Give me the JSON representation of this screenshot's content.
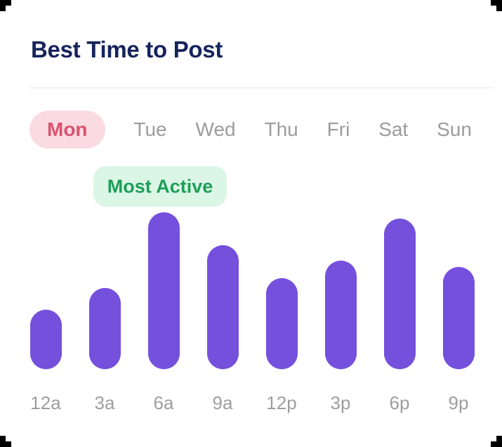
{
  "page": {
    "title": "Best Time to Post"
  },
  "tabs": {
    "days": [
      "Mon",
      "Tue",
      "Wed",
      "Thu",
      "Fri",
      "Sat",
      "Sun"
    ],
    "selected": "Mon"
  },
  "badge": {
    "label": "Most Active"
  },
  "chart_data": {
    "type": "bar",
    "categories": [
      "12a",
      "3a",
      "6a",
      "9a",
      "12p",
      "3p",
      "6p",
      "9p"
    ],
    "values": [
      38,
      52,
      100,
      79,
      58,
      69,
      96,
      65
    ],
    "title": "Best Time to Post",
    "xlabel": "",
    "ylabel": "",
    "ylim": [
      0,
      100
    ],
    "grid": false,
    "legend": false,
    "selected_series": "Mon",
    "annotation": "Most Active",
    "annotation_target": "6a",
    "bar_color": "#7450dc"
  },
  "colors": {
    "title": "#16245c",
    "bar": "#7450dc",
    "active_tab_bg": "#fadbe2",
    "active_tab_text": "#d9536f",
    "inactive_tab_text": "#9c9c9c",
    "badge_bg": "#dcf6e6",
    "badge_text": "#1e9e58",
    "divider": "#e6e6e6",
    "axis_label": "#9e9e9e"
  }
}
